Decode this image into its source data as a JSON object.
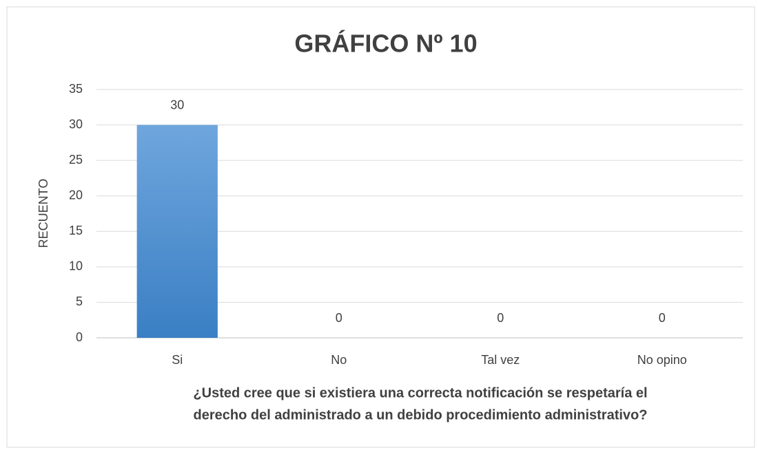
{
  "chart_data": {
    "type": "bar",
    "title": "GRÁFICO Nº 10",
    "categories": [
      "Si",
      "No",
      "Tal vez",
      "No opino"
    ],
    "values": [
      30,
      0,
      0,
      0
    ],
    "color": "#4a8fd6",
    "ylabel": "RECUENTO",
    "xlabel": [
      "¿Usted cree que si existiera una correcta notificación se respetaría el",
      "derecho del administrado a un debido procedimiento administrativo?"
    ],
    "ylim": [
      0,
      35
    ],
    "yticks": [
      0,
      5,
      10,
      15,
      20,
      25,
      30,
      35
    ],
    "grid": true
  }
}
